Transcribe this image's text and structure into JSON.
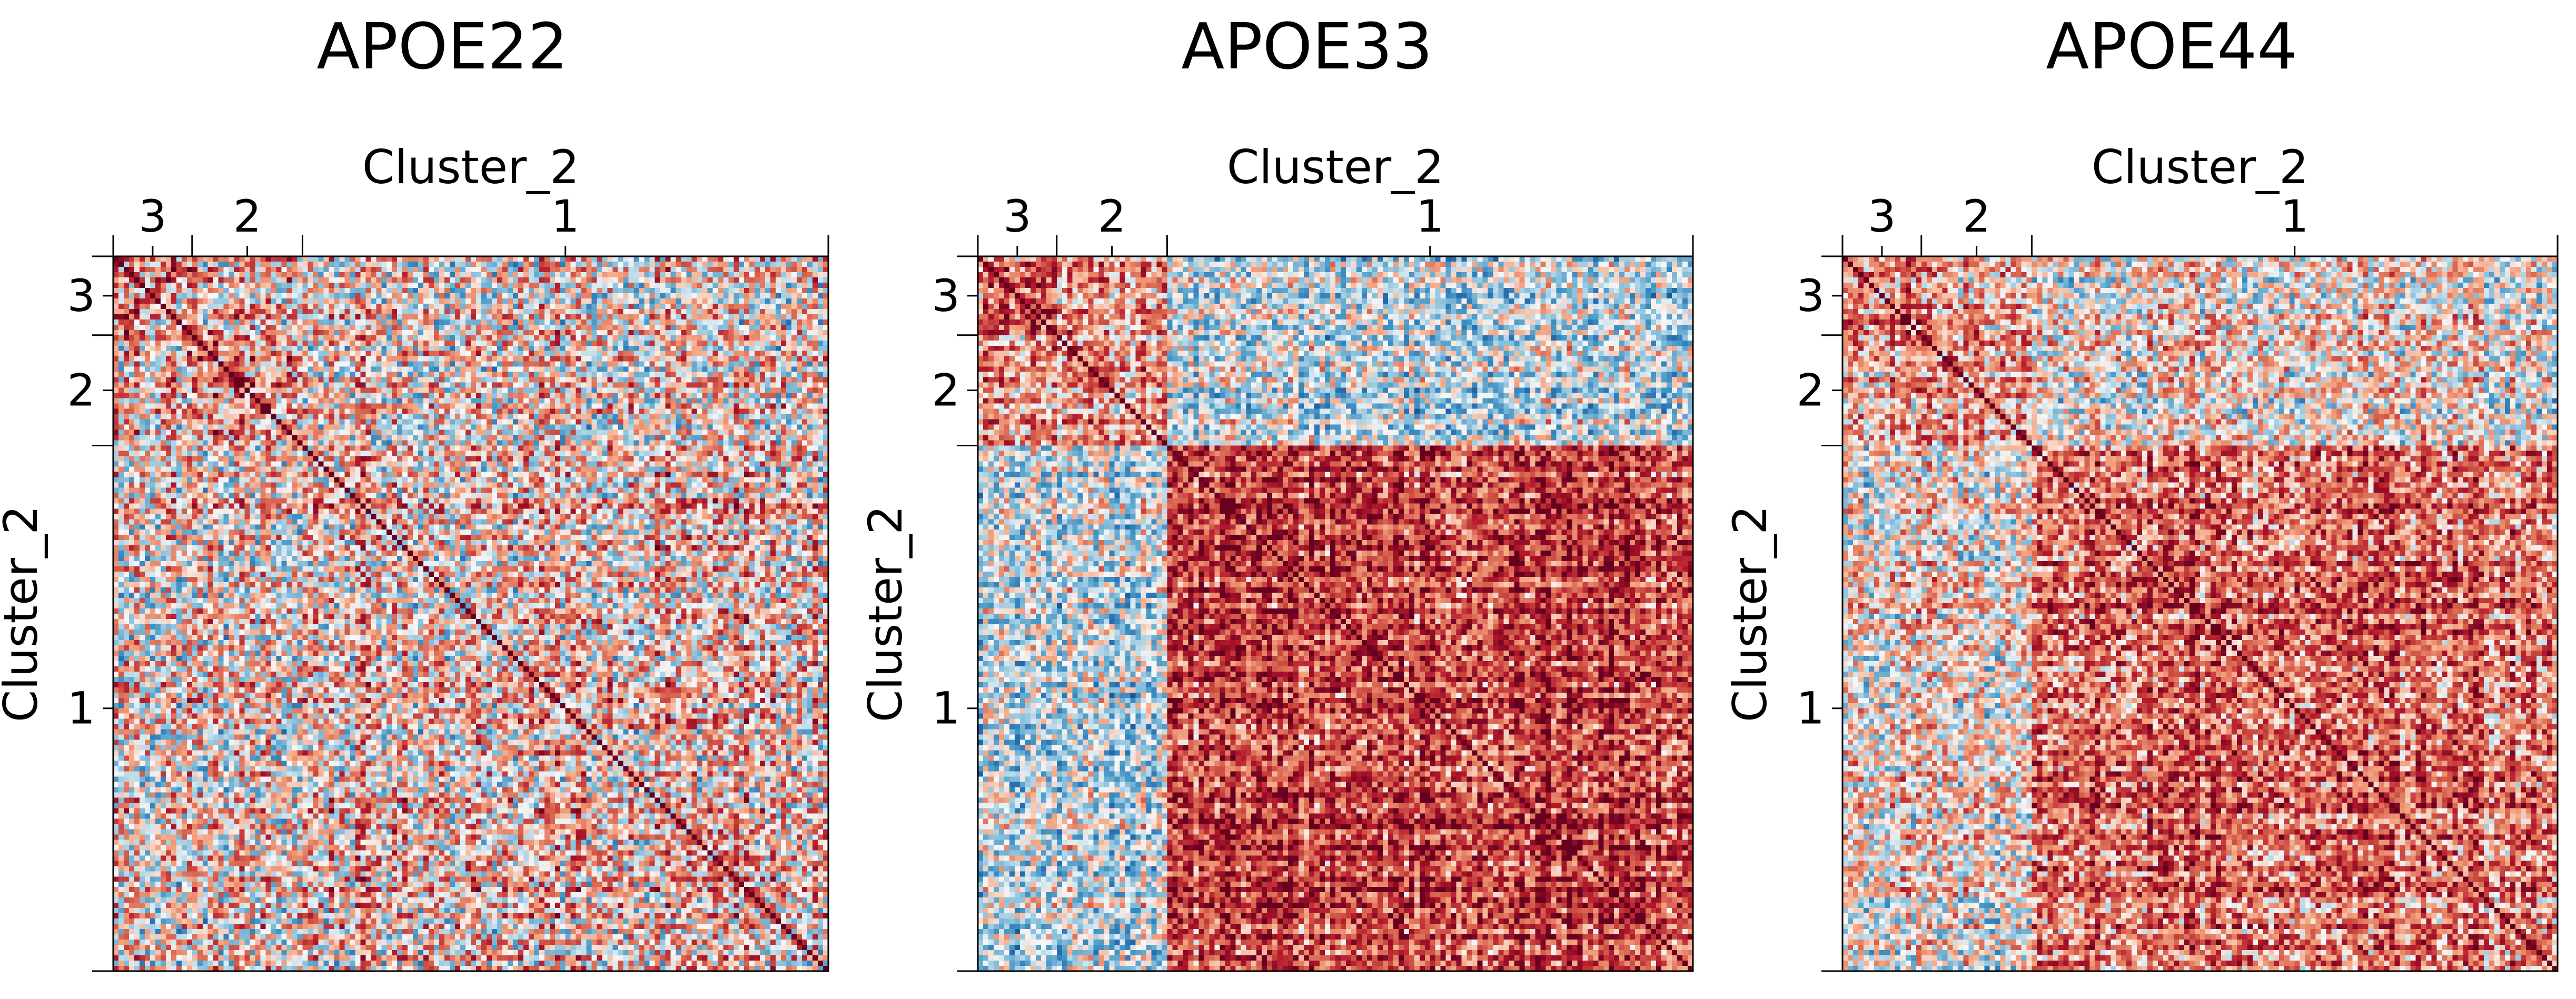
{
  "figure": {
    "background": "#ffffff"
  },
  "chart_data": [
    {
      "type": "heatmap",
      "title": "APOE22",
      "xlabel": "Cluster_2",
      "ylabel": "Cluster_2",
      "groups": [
        {
          "label": "3",
          "size": 15
        },
        {
          "label": "2",
          "size": 21
        },
        {
          "label": "1",
          "size": 100
        }
      ],
      "x_axis_position": "top",
      "within_group_correlation": [
        [
          0.35,
          0.2,
          0.1
        ],
        [
          0.2,
          0.3,
          0.08
        ],
        [
          0.1,
          0.08,
          0.16
        ]
      ],
      "noise": 0.55,
      "colormap": "RdBu_r",
      "value_range": [
        -1,
        1
      ],
      "diagonal": 1.0
    },
    {
      "type": "heatmap",
      "title": "APOE33",
      "xlabel": "Cluster_2",
      "ylabel": "Cluster_2",
      "groups": [
        {
          "label": "3",
          "size": 15
        },
        {
          "label": "2",
          "size": 21
        },
        {
          "label": "1",
          "size": 100
        }
      ],
      "x_axis_position": "top",
      "within_group_correlation": [
        [
          0.45,
          0.3,
          -0.15
        ],
        [
          0.3,
          0.35,
          -0.1
        ],
        [
          -0.15,
          -0.1,
          0.62
        ]
      ],
      "noise": 0.42,
      "colormap": "RdBu_r",
      "value_range": [
        -1,
        1
      ],
      "diagonal": 1.0
    },
    {
      "type": "heatmap",
      "title": "APOE44",
      "xlabel": "Cluster_2",
      "ylabel": "Cluster_2",
      "groups": [
        {
          "label": "3",
          "size": 15
        },
        {
          "label": "2",
          "size": 21
        },
        {
          "label": "1",
          "size": 100
        }
      ],
      "x_axis_position": "top",
      "within_group_correlation": [
        [
          0.4,
          0.25,
          0.05
        ],
        [
          0.25,
          0.3,
          0.05
        ],
        [
          0.05,
          0.05,
          0.45
        ]
      ],
      "noise": 0.45,
      "colormap": "RdBu_r",
      "value_range": [
        -1,
        1
      ],
      "diagonal": 1.0
    }
  ]
}
